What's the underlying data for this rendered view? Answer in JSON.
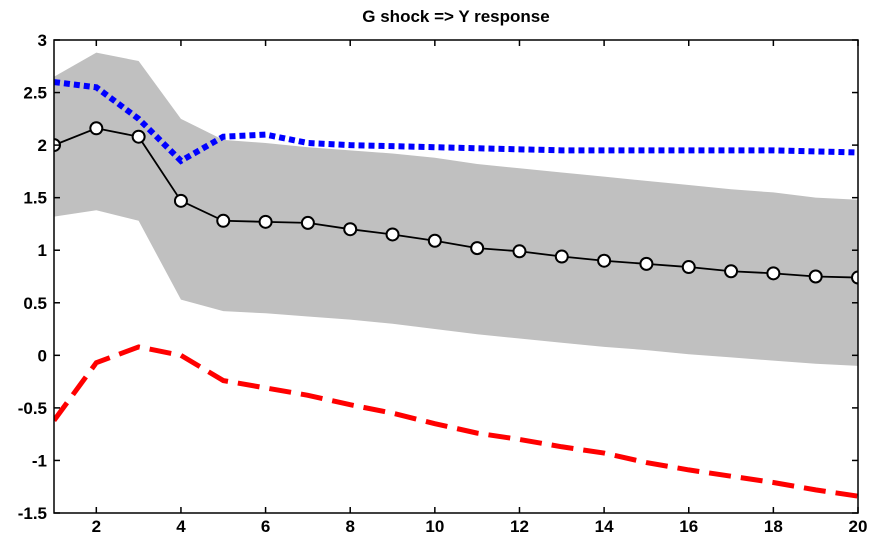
{
  "chart_data": {
    "type": "line",
    "title": "G shock => Y response",
    "xlabel": "",
    "ylabel": "",
    "xlim": [
      1,
      20
    ],
    "ylim": [
      -1.5,
      3
    ],
    "xticks": [
      2,
      4,
      6,
      8,
      10,
      12,
      14,
      16,
      18,
      20
    ],
    "yticks": [
      -1.5,
      -1,
      -0.5,
      0,
      0.5,
      1,
      1.5,
      2,
      2.5,
      3
    ],
    "grid": false,
    "x": [
      1,
      2,
      3,
      4,
      5,
      6,
      7,
      8,
      9,
      10,
      11,
      12,
      13,
      14,
      15,
      16,
      17,
      18,
      19,
      20
    ],
    "band": {
      "color": "#c0c0c0",
      "upper": [
        2.65,
        2.88,
        2.8,
        2.25,
        2.05,
        2.02,
        1.98,
        1.95,
        1.92,
        1.88,
        1.82,
        1.78,
        1.74,
        1.7,
        1.66,
        1.62,
        1.58,
        1.55,
        1.5,
        1.48
      ],
      "lower": [
        1.32,
        1.38,
        1.28,
        0.53,
        0.42,
        0.4,
        0.37,
        0.34,
        0.3,
        0.25,
        0.2,
        0.16,
        0.12,
        0.08,
        0.05,
        0.01,
        -0.02,
        -0.05,
        -0.08,
        -0.1
      ]
    },
    "series": [
      {
        "style": "solid-circles",
        "color": "#000000",
        "values": [
          2.0,
          2.16,
          2.08,
          1.47,
          1.28,
          1.27,
          1.26,
          1.2,
          1.15,
          1.09,
          1.02,
          0.99,
          0.94,
          0.9,
          0.87,
          0.84,
          0.8,
          0.78,
          0.75,
          0.74
        ]
      },
      {
        "style": "dotted",
        "color": "#0000ff",
        "values": [
          2.6,
          2.55,
          2.25,
          1.85,
          2.08,
          2.1,
          2.02,
          2.0,
          1.99,
          1.98,
          1.97,
          1.96,
          1.95,
          1.95,
          1.95,
          1.95,
          1.95,
          1.95,
          1.94,
          1.93
        ]
      },
      {
        "style": "dashed",
        "color": "#ff0000",
        "values": [
          -0.62,
          -0.07,
          0.08,
          0.0,
          -0.24,
          -0.31,
          -0.38,
          -0.47,
          -0.55,
          -0.65,
          -0.74,
          -0.8,
          -0.87,
          -0.93,
          -1.02,
          -1.09,
          -1.15,
          -1.21,
          -1.28,
          -1.34
        ]
      }
    ]
  }
}
